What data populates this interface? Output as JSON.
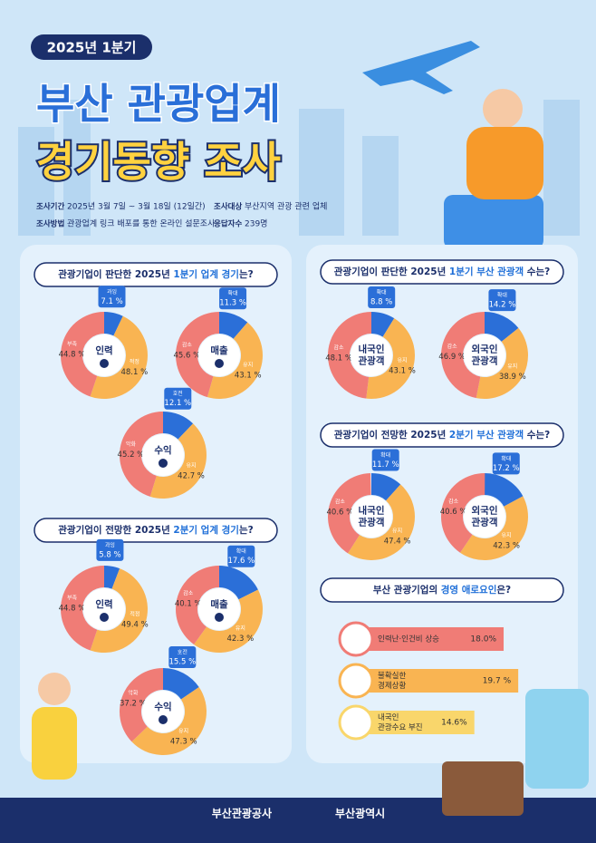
{
  "header": {
    "badge": "2025년 1분기",
    "title": [
      "부산 관광업계",
      "경기동향 조사"
    ]
  },
  "survey": [
    {
      "label": "조사기간",
      "text": "2025년 3월 7일 ~ 3월 18일 (12일간)"
    },
    {
      "label": "조사대상",
      "text": "부산지역 관광 관련 업체"
    },
    {
      "label": "조사방법",
      "text": "관광업계 링크 배포를 통한 온라인 설문조사"
    },
    {
      "label": "응답자수",
      "text": "239명"
    }
  ],
  "sections": [
    {
      "title": [
        "관광기업이 판단한 2025년 ",
        "1분기 업계 경기",
        "는?"
      ]
    },
    {
      "title": [
        "관광기업이 전망한 2025년 ",
        "2분기 업계 경기",
        "는?"
      ]
    },
    {
      "title": [
        "관광기업이 판단한 2025년 ",
        "1분기 부산 관광객",
        " 수는?"
      ]
    },
    {
      "title": [
        "관광기업이 전망한 2025년 ",
        "2분기 부산 관광객",
        " 수는?"
      ]
    },
    {
      "title": [
        "부산 관광기업의 ",
        "경영 애로요인",
        "은?"
      ]
    }
  ],
  "chart_data": [
    {
      "type": "pie",
      "title": [
        "인력"
      ],
      "categories": [
        "과잉",
        "적정",
        "부족"
      ],
      "values": [
        7.1,
        48.1,
        44.8
      ],
      "value_labels": [
        "7.1 %",
        "48.1 %",
        "44.8 %"
      ],
      "colors": [
        "#2b6fd8",
        "#f9b452",
        "#f07c76"
      ]
    },
    {
      "type": "pie",
      "title": [
        "매출"
      ],
      "categories": [
        "확대",
        "유지",
        "감소"
      ],
      "values": [
        11.3,
        43.1,
        45.6
      ],
      "value_labels": [
        "11.3 %",
        "43.1 %",
        "45.6 %"
      ],
      "colors": [
        "#2b6fd8",
        "#f9b452",
        "#f07c76"
      ]
    },
    {
      "type": "pie",
      "title": [
        "수익"
      ],
      "categories": [
        "호전",
        "유지",
        "악화"
      ],
      "values": [
        12.1,
        42.7,
        45.2
      ],
      "value_labels": [
        "12.1 %",
        "42.7 %",
        "45.2 %"
      ],
      "colors": [
        "#2b6fd8",
        "#f9b452",
        "#f07c76"
      ]
    },
    {
      "type": "pie",
      "title": [
        "인력"
      ],
      "categories": [
        "과잉",
        "적정",
        "부족"
      ],
      "values": [
        5.8,
        49.4,
        44.8
      ],
      "value_labels": [
        "5.8 %",
        "49.4 %",
        "44.8 %"
      ],
      "colors": [
        "#2b6fd8",
        "#f9b452",
        "#f07c76"
      ]
    },
    {
      "type": "pie",
      "title": [
        "매출"
      ],
      "categories": [
        "확대",
        "유지",
        "감소"
      ],
      "values": [
        17.6,
        42.3,
        40.1
      ],
      "value_labels": [
        "17.6 %",
        "42.3 %",
        "40.1 %"
      ],
      "colors": [
        "#2b6fd8",
        "#f9b452",
        "#f07c76"
      ]
    },
    {
      "type": "pie",
      "title": [
        "수익"
      ],
      "categories": [
        "호전",
        "유지",
        "악화"
      ],
      "values": [
        15.5,
        47.3,
        37.2
      ],
      "value_labels": [
        "15.5 %",
        "47.3 %",
        "37.2 %"
      ],
      "colors": [
        "#2b6fd8",
        "#f9b452",
        "#f07c76"
      ]
    },
    {
      "type": "pie",
      "title": [
        "내국인",
        "관광객"
      ],
      "categories": [
        "확대",
        "유지",
        "감소"
      ],
      "values": [
        8.8,
        43.1,
        48.1
      ],
      "value_labels": [
        "8.8 %",
        "43.1 %",
        "48.1 %"
      ],
      "colors": [
        "#2b6fd8",
        "#f9b452",
        "#f07c76"
      ]
    },
    {
      "type": "pie",
      "title": [
        "외국인",
        "관광객"
      ],
      "categories": [
        "확대",
        "유지",
        "감소"
      ],
      "values": [
        14.2,
        38.9,
        46.9
      ],
      "value_labels": [
        "14.2 %",
        "38.9 %",
        "46.9 %"
      ],
      "colors": [
        "#2b6fd8",
        "#f9b452",
        "#f07c76"
      ]
    },
    {
      "type": "pie",
      "title": [
        "내국인",
        "관광객"
      ],
      "categories": [
        "확대",
        "유지",
        "감소"
      ],
      "values": [
        11.7,
        47.4,
        40.6
      ],
      "value_labels": [
        "11.7 %",
        "47.4 %",
        "40.6 %"
      ],
      "colors": [
        "#2b6fd8",
        "#f9b452",
        "#f07c76"
      ]
    },
    {
      "type": "pie",
      "title": [
        "외국인",
        "관광객"
      ],
      "categories": [
        "확대",
        "유지",
        "감소"
      ],
      "values": [
        17.2,
        42.3,
        40.6
      ],
      "value_labels": [
        "17.2 %",
        "42.3 %",
        "40.6 %"
      ],
      "colors": [
        "#2b6fd8",
        "#f9b452",
        "#f07c76"
      ]
    },
    {
      "type": "bar",
      "categories": [
        [
          "인력난·인건비 상승"
        ],
        [
          "불확실한",
          "경제상황"
        ],
        [
          "내국인",
          "관광수요 부진"
        ]
      ],
      "values": [
        18.0,
        19.7,
        14.6
      ],
      "value_labels": [
        "18.0%",
        "19.7 %",
        "14.6%"
      ],
      "colors": [
        "#f07c76",
        "#f9b452",
        "#f9d66b"
      ]
    }
  ],
  "footer": [
    "부산관광공사",
    "부산광역시"
  ]
}
